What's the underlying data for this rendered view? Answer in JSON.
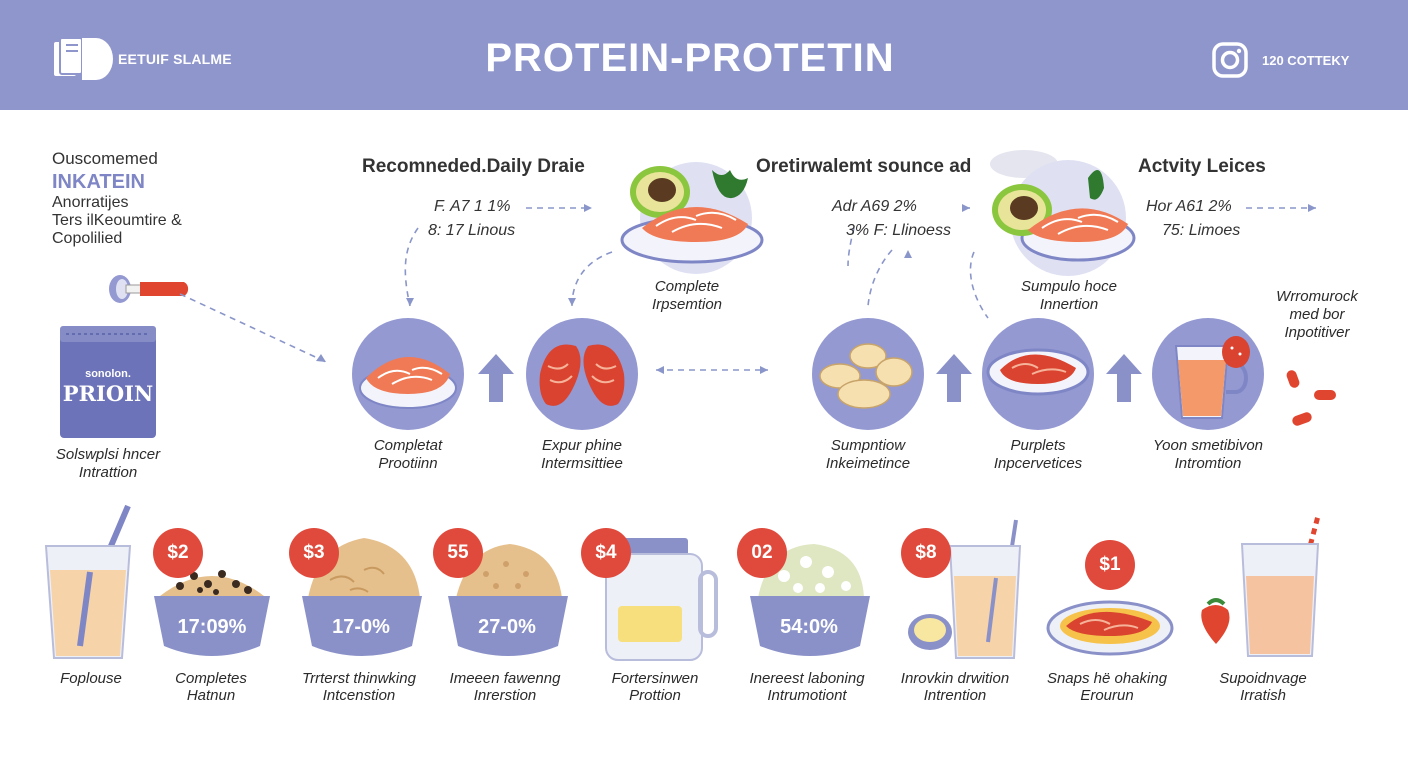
{
  "header": {
    "brand_name": "EETUIF SLALME",
    "title": "PROTEIN-PROTETIN",
    "social_text": "120 COTTEKY",
    "bg_color": "#8f96cc"
  },
  "left_panel": {
    "line1": "Ouscomemed",
    "line2": "INKATEIN",
    "line3": "Anorratijes",
    "line4": "Ters ilKeoumtire &",
    "line5": "Copolilied",
    "bag_text_small": "sonolon.",
    "bag_text_big": "PRIOIN",
    "caption_l1": "Solswplsi hncer",
    "caption_l2": "Intrattion"
  },
  "middle": {
    "col1": {
      "heading": "Recomneded.Daily Draie",
      "stat1": "F. A7 1 1%",
      "stat2": "8: 17 Linous"
    },
    "col2": {
      "heading": "Oretirwalemt sounce ad",
      "stat1": "Adr A69 2%",
      "stat2": "3% F: Llinoess"
    },
    "col3": {
      "heading": "Actvity Leices",
      "stat1": "Hor A61 2%",
      "stat2": "75: Limoes"
    },
    "plate1_caption_l1": "Complete",
    "plate1_caption_l2": "Irpsemtion",
    "plate2_caption_l1": "Sumpulo hoce",
    "plate2_caption_l2": "Innertion",
    "right_note_l1": "Wrromurock",
    "right_note_l2": "med bor",
    "right_note_l3": "Inpotitiver"
  },
  "circles": [
    {
      "icon": "salmon-icon",
      "l1": "Completat",
      "l2": "Prootiinn"
    },
    {
      "icon": "meat-icon",
      "l1": "Expur phine",
      "l2": "Intermsittiee"
    },
    {
      "icon": "potato-icon",
      "l1": "Sumpntiow",
      "l2": "Inkeimetince"
    },
    {
      "icon": "steak-icon",
      "l1": "Purplets",
      "l2": "Inpcervetices"
    },
    {
      "icon": "drink-icon",
      "l1": "Yoon smetibivon",
      "l2": "Intromtion"
    }
  ],
  "bottom": [
    {
      "icon": "milk-glass-icon",
      "l1": "Foplouse",
      "l2": ""
    },
    {
      "icon": "beans-bowl-icon",
      "price": "$2",
      "value": "17:09%",
      "l1": "Completes",
      "l2": "Hatnun"
    },
    {
      "icon": "oats-bowl-icon",
      "price": "$3",
      "value": "17-0%",
      "l1": "Trrterst thinwking",
      "l2": "Intcenstion"
    },
    {
      "icon": "grain-bowl-icon",
      "price": "55",
      "value": "27-0%",
      "l1": "Imeeen fawenng",
      "l2": "Inrerstion"
    },
    {
      "icon": "jar-icon",
      "price": "$4",
      "l1": "Fortersinwen",
      "l2": "Prottion"
    },
    {
      "icon": "rice-bowl-icon",
      "price": "02",
      "value": "54:0%",
      "l1": "Inereest laboning",
      "l2": "Intrumotiont"
    },
    {
      "icon": "shake-icon",
      "price": "$8",
      "l1": "Inrovkin drwition",
      "l2": "Intrention"
    },
    {
      "icon": "steak-plate-icon",
      "price": "$1",
      "l1": "Snaps hë ohaking",
      "l2": "Erourun"
    },
    {
      "icon": "smoothie-icon",
      "l1": "Supoidnvage",
      "l2": "Irratish"
    }
  ],
  "colors": {
    "accent": "#9499d2",
    "price": "#e04a3c",
    "arrow": "#8a91c8",
    "salmon": "#f07a55"
  }
}
